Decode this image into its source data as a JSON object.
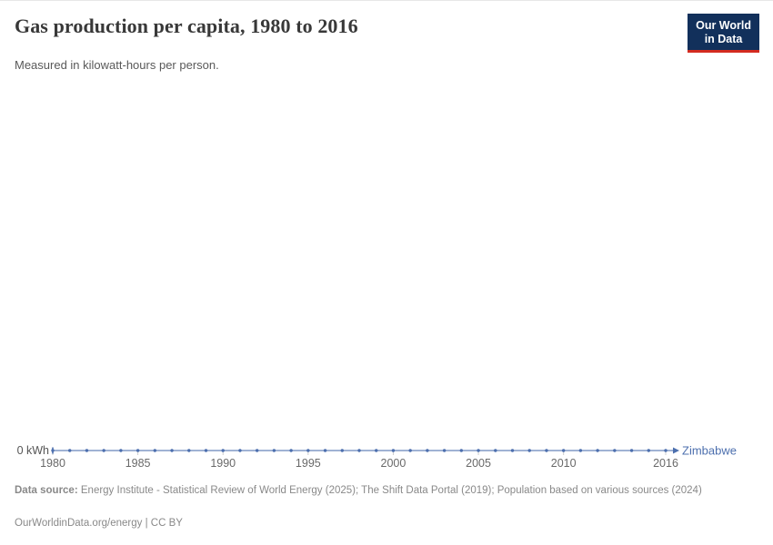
{
  "header": {
    "title": "Gas production per capita, 1980 to 2016",
    "subtitle": "Measured in kilowatt-hours per person.",
    "logo": {
      "line1": "Our World",
      "line2": "in Data",
      "bg_color": "#12305b",
      "accent_color": "#d42b20"
    }
  },
  "chart_data": {
    "type": "line",
    "title": "Gas production per capita, 1980 to 2016",
    "xlabel": "",
    "ylabel": "",
    "unit": "kWh",
    "x_range": [
      1980,
      2016
    ],
    "ylim": [
      0,
      1
    ],
    "grid": false,
    "legend_position": "end-of-line",
    "y_zero_label": "0 kWh",
    "x_ticks": [
      1980,
      1985,
      1990,
      1995,
      2000,
      2005,
      2010,
      2016
    ],
    "series": [
      {
        "name": "Zimbabwe",
        "color": "#4c6fae",
        "x": [
          1980,
          1981,
          1982,
          1983,
          1984,
          1985,
          1986,
          1987,
          1988,
          1989,
          1990,
          1991,
          1992,
          1993,
          1994,
          1995,
          1996,
          1997,
          1998,
          1999,
          2000,
          2001,
          2002,
          2003,
          2004,
          2005,
          2006,
          2007,
          2008,
          2009,
          2010,
          2011,
          2012,
          2013,
          2014,
          2015,
          2016
        ],
        "values": [
          0,
          0,
          0,
          0,
          0,
          0,
          0,
          0,
          0,
          0,
          0,
          0,
          0,
          0,
          0,
          0,
          0,
          0,
          0,
          0,
          0,
          0,
          0,
          0,
          0,
          0,
          0,
          0,
          0,
          0,
          0,
          0,
          0,
          0,
          0,
          0,
          0
        ]
      }
    ],
    "colors": {
      "axis_tick": "#cccccc",
      "tick_label": "#696969",
      "y_label": "#555555"
    }
  },
  "footer": {
    "datasource_label": "Data source:",
    "datasource_text": "Energy Institute - Statistical Review of World Energy (2025); The Shift Data Portal (2019); Population based on various sources (2024)",
    "license_text": "OurWorldinData.org/energy | CC BY"
  }
}
